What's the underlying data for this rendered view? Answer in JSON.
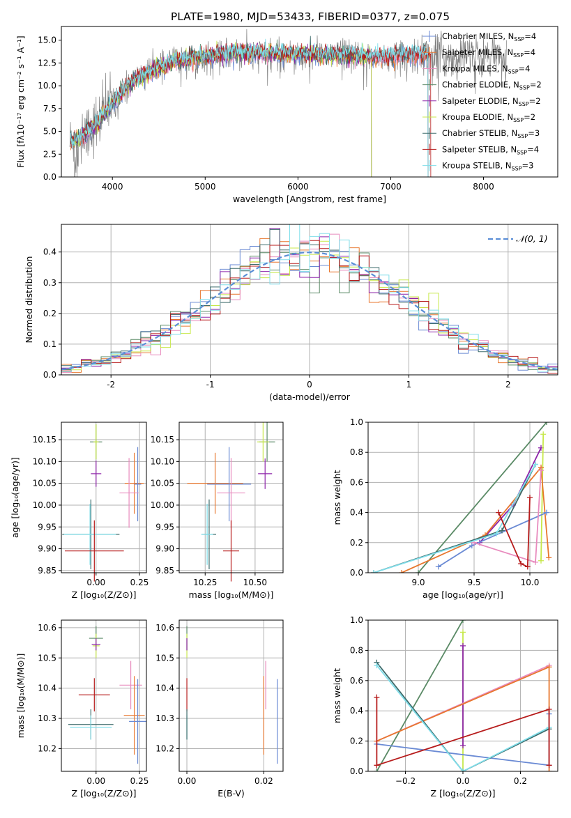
{
  "title": "PLATE=1980, MJD=53433, FIBERID=0377, z=0.075",
  "colors": {
    "chabrier_miles": "#6a8ad4",
    "salpeter_miles": "#e8772e",
    "kroupa_miles": "#e88bbe",
    "chabrier_elodie": "#5a8a66",
    "salpeter_elodie": "#8e24aa",
    "kroupa_elodie": "#c7e84a",
    "chabrier_stelib": "#3d6b6b",
    "salpeter_stelib": "#b71c1c",
    "kroupa_stelib": "#80deea",
    "gaussian": "#5b8ed6",
    "spectrum_gray": "#808080",
    "grid": "#b0b0b0"
  },
  "legend_spectrum": [
    {
      "pre": "Chabrier MILES, N",
      "sub": "SSP",
      "post": "=4",
      "color_key": "chabrier_miles"
    },
    {
      "pre": "Salpeter MILES, N",
      "sub": "SSP",
      "post": "=4",
      "color_key": "salpeter_miles"
    },
    {
      "pre": "Kroupa MILES, N",
      "sub": "SSP",
      "post": "=4",
      "color_key": "kroupa_miles"
    },
    {
      "pre": "Chabrier ELODIE, N",
      "sub": "SSP",
      "post": "=2",
      "color_key": "chabrier_elodie"
    },
    {
      "pre": "Salpeter ELODIE, N",
      "sub": "SSP",
      "post": "=2",
      "color_key": "salpeter_elodie"
    },
    {
      "pre": "Kroupa ELODIE, N",
      "sub": "SSP",
      "post": "=2",
      "color_key": "kroupa_elodie"
    },
    {
      "pre": "Chabrier STELIB, N",
      "sub": "SSP",
      "post": "=3",
      "color_key": "chabrier_stelib"
    },
    {
      "pre": "Salpeter STELIB, N",
      "sub": "SSP",
      "post": "=4",
      "color_key": "salpeter_stelib"
    },
    {
      "pre": "Kroupa STELIB, N",
      "sub": "SSP",
      "post": "=3",
      "color_key": "kroupa_stelib"
    }
  ],
  "chart_data": [
    {
      "id": "spectrum",
      "type": "line",
      "xlabel": "wavelength [Angstrom, rest frame]",
      "ylabel": "Flux [fλ10⁻¹⁷ erg cm⁻² s⁻¹ A⁻¹]",
      "xlim": [
        3450,
        8800
      ],
      "ylim": [
        0,
        16.5
      ],
      "xticks": [
        4000,
        5000,
        6000,
        7000,
        8000
      ],
      "yticks": [
        0.0,
        2.5,
        5.0,
        7.5,
        10.0,
        12.5,
        15.0
      ],
      "continuum": {
        "x": [
          3550,
          3650,
          3750,
          3850,
          3950,
          4050,
          4150,
          4250,
          4350,
          4450,
          4550,
          4650,
          4800,
          5000,
          5200,
          5400,
          5600,
          5800,
          6000,
          6200,
          6400,
          6600,
          6800,
          7000,
          7200,
          7400,
          7450
        ],
        "y": [
          3.8,
          4.2,
          5.2,
          6.0,
          7.5,
          8.6,
          9.8,
          10.8,
          11.2,
          11.8,
          12.2,
          12.6,
          13.0,
          13.2,
          13.5,
          13.6,
          13.6,
          13.5,
          13.5,
          13.4,
          13.4,
          13.3,
          13.2,
          13.2,
          13.4,
          13.4,
          13.3
        ]
      }
    },
    {
      "id": "residuals",
      "type": "step",
      "xlabel": "(data-model)/error",
      "ylabel": "Normed distribution",
      "xlim": [
        -2.5,
        2.5
      ],
      "ylim": [
        0,
        0.49
      ],
      "xticks": [
        -2,
        -1,
        0,
        1,
        2
      ],
      "yticks": [
        0.0,
        0.1,
        0.2,
        0.3,
        0.4
      ],
      "legend": "𝒩(0, 1)",
      "bin_width": 0.1
    },
    {
      "id": "age_vs_Z",
      "type": "errorbar",
      "xlabel": "Z [log₁₀(Z/Z⊙)]",
      "ylabel": "age  [log₁₀(age/yr)]",
      "xlim": [
        -0.2,
        0.29
      ],
      "ylim": [
        9.845,
        10.19
      ],
      "xticks": [
        0.0,
        0.25
      ],
      "xtick_labels": [
        "0.00",
        "0.25"
      ],
      "yticks": [
        9.85,
        9.9,
        9.95,
        10.0,
        10.05,
        10.1,
        10.15
      ],
      "points": [
        {
          "c": "chabrier_elodie",
          "x": 0.0,
          "xe": 0.035,
          "y": 10.145,
          "ye": 0.04
        },
        {
          "c": "kroupa_elodie",
          "x": 0.0,
          "xe": 0.015,
          "y": 10.145,
          "ye": 0.04
        },
        {
          "c": "salpeter_elodie",
          "x": 0.0,
          "xe": 0.03,
          "y": 10.072,
          "ye": 0.03
        },
        {
          "c": "salpeter_miles",
          "x": 0.22,
          "xe": 0.055,
          "y": 10.05,
          "ye": 0.07
        },
        {
          "c": "chabrier_miles",
          "x": 0.24,
          "xe": 0.02,
          "y": 10.048,
          "ye": 0.085
        },
        {
          "c": "kroupa_miles",
          "x": 0.19,
          "xe": 0.055,
          "y": 10.028,
          "ye": 0.08
        },
        {
          "c": "chabrier_stelib",
          "x": -0.03,
          "xe": 0.165,
          "y": 9.933,
          "ye": 0.08
        },
        {
          "c": "kroupa_stelib",
          "x": -0.035,
          "xe": 0.15,
          "y": 9.933,
          "ye": 0.07
        },
        {
          "c": "salpeter_stelib",
          "x": -0.01,
          "xe": 0.17,
          "y": 9.895,
          "ye": 0.07
        }
      ]
    },
    {
      "id": "age_vs_mass",
      "type": "errorbar",
      "xlabel": "mass [log₁₀(M/M⊙)]",
      "ylabel": "",
      "xlim": [
        10.12,
        10.64
      ],
      "ylim": [
        9.845,
        10.19
      ],
      "xticks": [
        10.25,
        10.5
      ],
      "xtick_labels": [
        "10.25",
        "10.50"
      ],
      "yticks": [
        9.85,
        9.9,
        9.95,
        10.0,
        10.05,
        10.1,
        10.15
      ],
      "points": [
        {
          "c": "chabrier_elodie",
          "x": 10.56,
          "xe": 0.04,
          "y": 10.145,
          "ye": 0.045
        },
        {
          "c": "kroupa_elodie",
          "x": 10.54,
          "xe": 0.03,
          "y": 10.145,
          "ye": 0.045
        },
        {
          "c": "salpeter_elodie",
          "x": 10.55,
          "xe": 0.035,
          "y": 10.072,
          "ye": 0.035
        },
        {
          "c": "salpeter_miles",
          "x": 10.3,
          "xe": 0.14,
          "y": 10.05,
          "ye": 0.07
        },
        {
          "c": "chabrier_miles",
          "x": 10.37,
          "xe": 0.11,
          "y": 10.048,
          "ye": 0.085
        },
        {
          "c": "kroupa_miles",
          "x": 10.38,
          "xe": 0.07,
          "y": 10.028,
          "ye": 0.08
        },
        {
          "c": "chabrier_stelib",
          "x": 10.27,
          "xe": 0.035,
          "y": 9.933,
          "ye": 0.08
        },
        {
          "c": "kroupa_stelib",
          "x": 10.26,
          "xe": 0.03,
          "y": 9.933,
          "ye": 0.07
        },
        {
          "c": "salpeter_stelib",
          "x": 10.38,
          "xe": 0.04,
          "y": 9.895,
          "ye": 0.07
        }
      ]
    },
    {
      "id": "weight_vs_age",
      "type": "line",
      "xlabel": "age  [log₁₀(age/yr)]",
      "ylabel": "mass weight",
      "xlim": [
        8.55,
        10.25
      ],
      "ylim": [
        0,
        1
      ],
      "xticks": [
        9.0,
        9.5,
        10.0
      ],
      "xtick_labels": [
        "9.0",
        "9.5",
        "10.0"
      ],
      "yticks": [
        0.0,
        0.2,
        0.4,
        0.6,
        0.8,
        1.0
      ],
      "series": [
        {
          "c": "chabrier_elodie",
          "x": [
            9.0,
            10.15
          ],
          "y": [
            0.0,
            1.0
          ]
        },
        {
          "c": "salpeter_elodie",
          "x": [
            9.55,
            9.85,
            10.1
          ],
          "y": [
            0.2,
            0.45,
            0.83
          ]
        },
        {
          "c": "kroupa_elodie",
          "x": [
            10.1,
            10.12
          ],
          "y": [
            0.08,
            0.92
          ]
        },
        {
          "c": "salpeter_miles",
          "x": [
            8.85,
            9.6,
            10.1,
            10.17
          ],
          "y": [
            0.0,
            0.25,
            0.7,
            0.1
          ]
        },
        {
          "c": "chabrier_miles",
          "x": [
            9.18,
            9.48,
            10.15
          ],
          "y": [
            0.04,
            0.18,
            0.4
          ]
        },
        {
          "c": "kroupa_miles",
          "x": [
            9.5,
            10.05,
            10.1
          ],
          "y": [
            0.2,
            0.07,
            0.68
          ]
        },
        {
          "c": "chabrier_stelib",
          "x": [
            8.6,
            9.75,
            10.05
          ],
          "y": [
            0.0,
            0.28,
            0.72
          ]
        },
        {
          "c": "kroupa_stelib",
          "x": [
            8.6,
            9.7,
            10.05
          ],
          "y": [
            0.0,
            0.26,
            0.72
          ]
        },
        {
          "c": "salpeter_stelib",
          "x": [
            9.72,
            9.92,
            9.98,
            10.0
          ],
          "y": [
            0.4,
            0.06,
            0.04,
            0.5
          ]
        }
      ]
    },
    {
      "id": "mass_vs_Z",
      "type": "errorbar",
      "xlabel": "Z [log₁₀(Z/Z⊙)]",
      "ylabel": "mass [log₁₀(M/M⊙)]",
      "xlim": [
        -0.2,
        0.29
      ],
      "ylim": [
        10.125,
        10.625
      ],
      "xticks": [
        0.0,
        0.25
      ],
      "xtick_labels": [
        "0.00",
        "0.25"
      ],
      "yticks": [
        10.2,
        10.3,
        10.4,
        10.5,
        10.6
      ],
      "points": [
        {
          "c": "chabrier_elodie",
          "x": 0.0,
          "xe": 0.04,
          "y": 10.565,
          "ye": 0.04
        },
        {
          "c": "kroupa_elodie",
          "x": 0.0,
          "xe": 0.02,
          "y": 10.54,
          "ye": 0.04
        },
        {
          "c": "salpeter_elodie",
          "x": 0.0,
          "xe": 0.025,
          "y": 10.545,
          "ye": 0.02
        },
        {
          "c": "kroupa_miles",
          "x": 0.2,
          "xe": 0.065,
          "y": 10.41,
          "ye": 0.08
        },
        {
          "c": "salpeter_stelib",
          "x": -0.01,
          "xe": 0.09,
          "y": 10.378,
          "ye": 0.055
        },
        {
          "c": "salpeter_miles",
          "x": 0.22,
          "xe": 0.06,
          "y": 10.31,
          "ye": 0.13
        },
        {
          "c": "chabrier_miles",
          "x": 0.24,
          "xe": 0.05,
          "y": 10.29,
          "ye": 0.14
        },
        {
          "c": "chabrier_stelib",
          "x": -0.03,
          "xe": 0.13,
          "y": 10.28,
          "ye": 0.05
        },
        {
          "c": "kroupa_stelib",
          "x": -0.03,
          "xe": 0.12,
          "y": 10.27,
          "ye": 0.04
        }
      ]
    },
    {
      "id": "mass_vs_EBV",
      "type": "errorbar",
      "xlabel": "E(B-V)",
      "ylabel": "",
      "xlim": [
        -0.002,
        0.025
      ],
      "ylim": [
        10.125,
        10.625
      ],
      "xticks": [
        0.0,
        0.02
      ],
      "xtick_labels": [
        "0.00",
        "0.02"
      ],
      "yticks": [
        10.2,
        10.3,
        10.4,
        10.5,
        10.6
      ],
      "points": [
        {
          "c": "chabrier_elodie",
          "x": 0.0,
          "xe": 0,
          "y": 10.565,
          "ye": 0.04
        },
        {
          "c": "kroupa_elodie",
          "x": 0.0,
          "xe": 0,
          "y": 10.54,
          "ye": 0.04
        },
        {
          "c": "salpeter_elodie",
          "x": 0.0,
          "xe": 0,
          "y": 10.545,
          "ye": 0.02
        },
        {
          "c": "salpeter_stelib",
          "x": 0.0,
          "xe": 0,
          "y": 10.378,
          "ye": 0.055
        },
        {
          "c": "kroupa_stelib",
          "x": 0.0,
          "xe": 0,
          "y": 10.27,
          "ye": 0.04
        },
        {
          "c": "chabrier_stelib",
          "x": 0.0,
          "xe": 0,
          "y": 10.28,
          "ye": 0.05
        },
        {
          "c": "kroupa_miles",
          "x": 0.0205,
          "xe": 0,
          "y": 10.41,
          "ye": 0.08
        },
        {
          "c": "salpeter_miles",
          "x": 0.02,
          "xe": 0,
          "y": 10.31,
          "ye": 0.13
        },
        {
          "c": "chabrier_miles",
          "x": 0.0235,
          "xe": 0,
          "y": 10.29,
          "ye": 0.14
        }
      ]
    },
    {
      "id": "weight_vs_Z",
      "type": "line",
      "xlabel": "Z [log₁₀(Z/Z⊙)]",
      "ylabel": "mass weight",
      "xlim": [
        -0.33,
        0.33
      ],
      "ylim": [
        0,
        1
      ],
      "xticks": [
        -0.2,
        0.0,
        0.2
      ],
      "xtick_labels": [
        "−0.2",
        "0.0",
        "0.2"
      ],
      "yticks": [
        0.0,
        0.2,
        0.4,
        0.6,
        0.8,
        1.0
      ],
      "series": [
        {
          "c": "chabrier_elodie",
          "x": [
            -0.3,
            0.0
          ],
          "y": [
            0.0,
            1.0
          ]
        },
        {
          "c": "kroupa_elodie",
          "x": [
            0.0,
            0.0
          ],
          "y": [
            0.0,
            0.92
          ]
        },
        {
          "c": "salpeter_elodie",
          "x": [
            0.0,
            0.0
          ],
          "y": [
            0.17,
            0.83
          ]
        },
        {
          "c": "kroupa_miles",
          "x": [
            -0.3,
            0.3
          ],
          "y": [
            0.2,
            0.7
          ]
        },
        {
          "c": "salpeter_miles",
          "x": [
            -0.3,
            0.3,
            0.3
          ],
          "y": [
            0.2,
            0.69,
            0.0
          ]
        },
        {
          "c": "chabrier_miles",
          "x": [
            -0.3,
            0.3,
            0.3
          ],
          "y": [
            0.18,
            0.04,
            0.38
          ]
        },
        {
          "c": "chabrier_stelib",
          "x": [
            -0.3,
            0.0,
            0.3
          ],
          "y": [
            0.72,
            0.0,
            0.28
          ]
        },
        {
          "c": "kroupa_stelib",
          "x": [
            -0.3,
            0.0,
            0.3
          ],
          "y": [
            0.7,
            0.0,
            0.29
          ]
        },
        {
          "c": "salpeter_stelib",
          "x": [
            -0.3,
            -0.3,
            0.3,
            0.3
          ],
          "y": [
            0.49,
            0.04,
            0.41,
            0.04
          ]
        }
      ]
    }
  ]
}
